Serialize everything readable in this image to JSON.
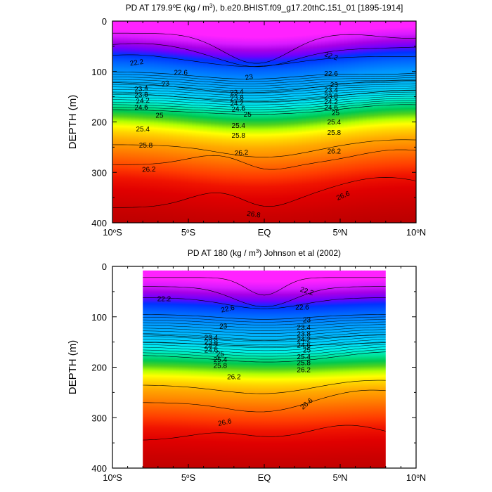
{
  "chart_data": [
    {
      "type": "contour",
      "title": "PD AT 179.9°E (kg / m³), b.e20.BHIST.f09_g17.20thC.151_01 [1895-1914]",
      "title_parts": {
        "pre": "PD AT 179.9",
        "deg": "o",
        "post1": "E (kg / m",
        "sup": "3",
        "post2": "), b.e20.BHIST.f09_g17.20thC.151_01 [1895-1914]"
      },
      "xlabel": "",
      "ylabel": "DEPTH (m)",
      "xlim": [
        -10,
        10
      ],
      "ylim": [
        0,
        400
      ],
      "data_xlim": [
        -10,
        10
      ],
      "y_ticks": [
        "0",
        "100",
        "200",
        "300",
        "400"
      ],
      "y_tick_values": [
        0,
        100,
        200,
        300,
        400
      ],
      "x_ticks": [
        {
          "value": -10,
          "num": "10",
          "deg": "o",
          "hemi": "S"
        },
        {
          "value": -5,
          "num": "5",
          "deg": "o",
          "hemi": "S"
        },
        {
          "value": 0,
          "num": "EQ",
          "deg": "",
          "hemi": ""
        },
        {
          "value": 5,
          "num": "5",
          "deg": "o",
          "hemi": "N"
        },
        {
          "value": 10,
          "num": "10",
          "deg": "o",
          "hemi": "N"
        }
      ],
      "contour_levels": [
        21.8,
        22.2,
        22.6,
        23.0,
        23.2,
        23.4,
        23.6,
        23.8,
        24.0,
        24.2,
        24.4,
        24.6,
        24.8,
        25.0,
        25.2,
        25.4,
        25.6,
        25.8,
        26.0,
        26.2,
        26.4,
        26.6,
        26.8
      ],
      "labels": [
        {
          "text": "22.2",
          "lat": -8.4,
          "depth": 83,
          "angle": -8
        },
        {
          "text": "22.6",
          "lat": -5.5,
          "depth": 103,
          "angle": 0
        },
        {
          "text": "23",
          "lat": -6.5,
          "depth": 125,
          "angle": -12
        },
        {
          "text": "23.4",
          "lat": -8.1,
          "depth": 135,
          "angle": -6
        },
        {
          "text": "23.8",
          "lat": -8.1,
          "depth": 147,
          "angle": -4
        },
        {
          "text": "24.2",
          "lat": -8.0,
          "depth": 159,
          "angle": -4
        },
        {
          "text": "24.6",
          "lat": -8.1,
          "depth": 172,
          "angle": -3
        },
        {
          "text": "25",
          "lat": -6.9,
          "depth": 188,
          "angle": 0
        },
        {
          "text": "25.4",
          "lat": -8.0,
          "depth": 215,
          "angle": 0
        },
        {
          "text": "25.8",
          "lat": -7.8,
          "depth": 247,
          "angle": 0
        },
        {
          "text": "26.2",
          "lat": -7.6,
          "depth": 295,
          "angle": -3
        },
        {
          "text": "23",
          "lat": -1.0,
          "depth": 112,
          "angle": -10
        },
        {
          "text": "23.4",
          "lat": -1.8,
          "depth": 142,
          "angle": -6
        },
        {
          "text": "23.8",
          "lat": -1.8,
          "depth": 153,
          "angle": -5
        },
        {
          "text": "24.2",
          "lat": -1.8,
          "depth": 164,
          "angle": -4
        },
        {
          "text": "24.6",
          "lat": -1.7,
          "depth": 175,
          "angle": -4
        },
        {
          "text": "25",
          "lat": -1.1,
          "depth": 186,
          "angle": 0
        },
        {
          "text": "25.4",
          "lat": -1.7,
          "depth": 208,
          "angle": 0
        },
        {
          "text": "25.8",
          "lat": -1.7,
          "depth": 228,
          "angle": 0
        },
        {
          "text": "26.2",
          "lat": -1.5,
          "depth": 262,
          "angle": -4
        },
        {
          "text": "26.6",
          "lat": 5.2,
          "depth": 347,
          "angle": -22
        },
        {
          "text": "26.8",
          "lat": -0.7,
          "depth": 384,
          "angle": 8
        },
        {
          "text": "22.2",
          "lat": 4.4,
          "depth": 70,
          "angle": 18
        },
        {
          "text": "22.6",
          "lat": 4.4,
          "depth": 105,
          "angle": 0
        },
        {
          "text": "23",
          "lat": 4.6,
          "depth": 127,
          "angle": 0
        },
        {
          "text": "23.4",
          "lat": 4.4,
          "depth": 138,
          "angle": 0
        },
        {
          "text": "23.8",
          "lat": 4.4,
          "depth": 150,
          "angle": 0
        },
        {
          "text": "24.2",
          "lat": 4.4,
          "depth": 161,
          "angle": 0
        },
        {
          "text": "24.6",
          "lat": 4.4,
          "depth": 172,
          "angle": 0
        },
        {
          "text": "25",
          "lat": 4.7,
          "depth": 183,
          "angle": 0
        },
        {
          "text": "25.4",
          "lat": 4.6,
          "depth": 201,
          "angle": 0
        },
        {
          "text": "25.8",
          "lat": 4.6,
          "depth": 222,
          "angle": 0
        },
        {
          "text": "26.2",
          "lat": 4.6,
          "depth": 259,
          "angle": 0
        }
      ]
    },
    {
      "type": "contour",
      "title": "PD AT 180 (kg / m³) Johnson et al (2002)",
      "title_parts": {
        "pre": "PD AT 180 (kg / m",
        "deg": "",
        "post1": "",
        "sup": "3",
        "post2": ") Johnson et al (2002)"
      },
      "xlabel": "",
      "ylabel": "DEPTH (m)",
      "xlim": [
        -10,
        10
      ],
      "ylim": [
        0,
        400
      ],
      "data_xlim": [
        -8,
        8
      ],
      "data_ylim": [
        8,
        400
      ],
      "y_ticks": [
        "0",
        "100",
        "200",
        "300",
        "400"
      ],
      "y_tick_values": [
        0,
        100,
        200,
        300,
        400
      ],
      "x_ticks": [
        {
          "value": -10,
          "num": "10",
          "deg": "o",
          "hemi": "S"
        },
        {
          "value": -5,
          "num": "5",
          "deg": "o",
          "hemi": "S"
        },
        {
          "value": 0,
          "num": "EQ",
          "deg": "",
          "hemi": ""
        },
        {
          "value": 5,
          "num": "5",
          "deg": "o",
          "hemi": "N"
        },
        {
          "value": 10,
          "num": "10",
          "deg": "o",
          "hemi": "N"
        }
      ],
      "contour_levels": [
        21.8,
        22.2,
        22.6,
        23.0,
        23.2,
        23.4,
        23.6,
        23.8,
        24.0,
        24.2,
        24.4,
        24.6,
        24.8,
        25.0,
        25.2,
        25.4,
        25.6,
        25.8,
        26.0,
        26.2,
        26.4,
        26.6,
        26.8
      ],
      "labels": [
        {
          "text": "22.2",
          "lat": -6.6,
          "depth": 65,
          "angle": 0
        },
        {
          "text": "22.6",
          "lat": -2.4,
          "depth": 85,
          "angle": -12
        },
        {
          "text": "23",
          "lat": -2.7,
          "depth": 120,
          "angle": 0
        },
        {
          "text": "23.4",
          "lat": -3.5,
          "depth": 142,
          "angle": 0
        },
        {
          "text": "23.8",
          "lat": -3.5,
          "depth": 151,
          "angle": 0
        },
        {
          "text": "24.2",
          "lat": -3.5,
          "depth": 159,
          "angle": 0
        },
        {
          "text": "24.6",
          "lat": -3.5,
          "depth": 167,
          "angle": 0
        },
        {
          "text": "25",
          "lat": -2.9,
          "depth": 175,
          "angle": 0
        },
        {
          "text": "25.4",
          "lat": -2.9,
          "depth": 186,
          "angle": 0
        },
        {
          "text": "25.8",
          "lat": -2.9,
          "depth": 198,
          "angle": 0
        },
        {
          "text": "26.2",
          "lat": -2.0,
          "depth": 220,
          "angle": 0
        },
        {
          "text": "26.6",
          "lat": -2.6,
          "depth": 310,
          "angle": -12
        },
        {
          "text": "22.2",
          "lat": 2.8,
          "depth": 50,
          "angle": 18
        },
        {
          "text": "22.6",
          "lat": 2.5,
          "depth": 82,
          "angle": 0
        },
        {
          "text": "23",
          "lat": 2.8,
          "depth": 107,
          "angle": 0
        },
        {
          "text": "23.4",
          "lat": 2.6,
          "depth": 122,
          "angle": 0
        },
        {
          "text": "23.8",
          "lat": 2.6,
          "depth": 135,
          "angle": 0
        },
        {
          "text": "24.2",
          "lat": 2.6,
          "depth": 146,
          "angle": 0
        },
        {
          "text": "24.6",
          "lat": 2.6,
          "depth": 157,
          "angle": 0
        },
        {
          "text": "25",
          "lat": 2.8,
          "depth": 167,
          "angle": 0
        },
        {
          "text": "25.4",
          "lat": 2.6,
          "depth": 180,
          "angle": 0
        },
        {
          "text": "25.8",
          "lat": 2.6,
          "depth": 192,
          "angle": 0
        },
        {
          "text": "26.2",
          "lat": 2.6,
          "depth": 206,
          "angle": 0
        },
        {
          "text": "26.6",
          "lat": 2.8,
          "depth": 273,
          "angle": -40
        }
      ]
    }
  ],
  "colors": {
    "surface_magenta": "#ff22ff",
    "mid_purple": "#a600e6",
    "cool_blue": "#0032ff",
    "cyan_blue": "#00aaff",
    "green": "#00b43c",
    "yellow": "#ffff00",
    "orange": "#ff8c00",
    "deep_red": "#c00000"
  }
}
